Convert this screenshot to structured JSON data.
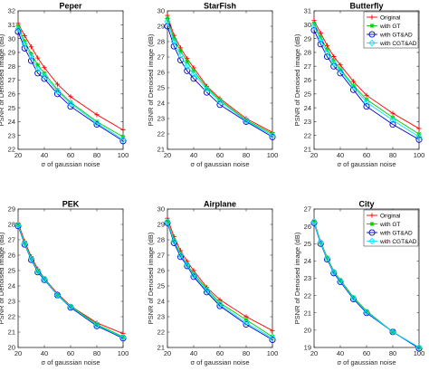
{
  "figure": {
    "x_ticks": [
      20,
      40,
      60,
      80,
      100
    ],
    "xlabel": "σ of gaussian noise",
    "ylabel": "PSNR of Denoised image (dB)",
    "series_styles": [
      {
        "name": "Original",
        "color": "#ff0000",
        "marker": "plus"
      },
      {
        "name": "with GT",
        "color": "#00cc00",
        "marker": "star"
      },
      {
        "name": "with GT&AD",
        "color": "#0000cc",
        "marker": "circle"
      },
      {
        "name": "with CGT&AD",
        "color": "#00e5ff",
        "marker": "diamond"
      }
    ]
  },
  "chart_data": [
    {
      "type": "line",
      "title": "Peper",
      "xlabel": "σ of gaussian noise",
      "ylabel": "PSNR of Denoised image (dB)",
      "xlim": [
        20,
        100
      ],
      "ylim": [
        22,
        32
      ],
      "yticks": [
        22,
        23,
        24,
        25,
        26,
        27,
        28,
        29,
        30,
        31,
        32
      ],
      "x": [
        20,
        25,
        30,
        35,
        40,
        50,
        60,
        80,
        100
      ],
      "legend": false,
      "series": [
        {
          "name": "Original",
          "values": [
            31.1,
            30.2,
            29.4,
            28.6,
            27.9,
            26.7,
            25.8,
            24.5,
            23.4
          ]
        },
        {
          "name": "with GT",
          "values": [
            30.9,
            29.8,
            28.9,
            28.1,
            27.5,
            26.3,
            25.4,
            24.0,
            22.9
          ]
        },
        {
          "name": "with GT&AD",
          "values": [
            30.5,
            29.3,
            28.4,
            27.5,
            27.1,
            26.0,
            25.1,
            23.8,
            22.6
          ]
        },
        {
          "name": "with CGT&AD",
          "values": [
            30.7,
            29.6,
            28.7,
            27.8,
            27.3,
            26.2,
            25.3,
            23.9,
            22.7
          ]
        }
      ]
    },
    {
      "type": "line",
      "title": "StarFish",
      "xlabel": "σ of gaussian noise",
      "ylabel": "PSNR of Denoised image (dB)",
      "xlim": [
        20,
        100
      ],
      "ylim": [
        21,
        30
      ],
      "yticks": [
        21,
        22,
        23,
        24,
        25,
        26,
        27,
        28,
        29,
        30
      ],
      "x": [
        20,
        25,
        30,
        35,
        40,
        50,
        60,
        80,
        100
      ],
      "legend": false,
      "series": [
        {
          "name": "Original",
          "values": [
            29.7,
            28.4,
            27.6,
            26.9,
            26.3,
            25.1,
            24.3,
            23.0,
            22.1
          ]
        },
        {
          "name": "with GT",
          "values": [
            29.5,
            28.2,
            27.4,
            26.7,
            26.1,
            25.0,
            24.2,
            22.9,
            22.0
          ]
        },
        {
          "name": "with GT&AD",
          "values": [
            29.0,
            27.7,
            26.8,
            26.1,
            25.6,
            24.7,
            23.9,
            22.8,
            21.8
          ]
        },
        {
          "name": "with CGT&AD",
          "values": [
            29.3,
            28.0,
            27.1,
            26.4,
            25.9,
            24.9,
            24.1,
            22.85,
            21.9
          ]
        }
      ]
    },
    {
      "type": "line",
      "title": "Butterfly",
      "xlabel": "σ of gaussian noise",
      "ylabel": "PSNR of Denoised image (dB)",
      "xlim": [
        20,
        100
      ],
      "ylim": [
        21,
        31
      ],
      "yticks": [
        21,
        22,
        23,
        24,
        25,
        26,
        27,
        28,
        29,
        30,
        31
      ],
      "x": [
        20,
        25,
        30,
        35,
        40,
        50,
        60,
        80,
        100
      ],
      "legend": true,
      "legend_position": "top-right",
      "series": [
        {
          "name": "Original",
          "values": [
            30.3,
            29.4,
            28.5,
            27.7,
            27.1,
            25.9,
            24.9,
            23.6,
            22.5
          ]
        },
        {
          "name": "with GT",
          "values": [
            30.1,
            29.1,
            28.2,
            27.4,
            26.8,
            25.6,
            24.6,
            23.3,
            22.1
          ]
        },
        {
          "name": "with GT&AD",
          "values": [
            29.6,
            28.6,
            27.7,
            27.0,
            26.5,
            25.3,
            24.1,
            22.8,
            21.7
          ]
        },
        {
          "name": "with CGT&AD",
          "values": [
            29.9,
            28.9,
            28.0,
            27.2,
            26.7,
            25.5,
            24.4,
            23.1,
            21.9
          ]
        }
      ]
    },
    {
      "type": "line",
      "title": "PEK",
      "xlabel": "σ of gaussian noise",
      "ylabel": "PSNR of Denoised image (dB)",
      "xlim": [
        20,
        100
      ],
      "ylim": [
        20,
        29
      ],
      "yticks": [
        20,
        21,
        22,
        23,
        24,
        25,
        26,
        27,
        28,
        29
      ],
      "x": [
        20,
        25,
        30,
        35,
        40,
        50,
        60,
        80,
        100
      ],
      "legend": false,
      "series": [
        {
          "name": "Original",
          "values": [
            28.1,
            26.9,
            25.9,
            25.1,
            24.5,
            23.5,
            22.7,
            21.6,
            20.9
          ]
        },
        {
          "name": "with GT",
          "values": [
            28.0,
            26.8,
            25.8,
            25.0,
            24.5,
            23.4,
            22.7,
            21.5,
            20.7
          ]
        },
        {
          "name": "with GT&AD",
          "values": [
            27.9,
            26.7,
            25.7,
            24.9,
            24.4,
            23.4,
            22.6,
            21.4,
            20.6
          ]
        },
        {
          "name": "with CGT&AD",
          "values": [
            27.95,
            26.75,
            25.75,
            24.95,
            24.45,
            23.4,
            22.65,
            21.45,
            20.65
          ]
        }
      ]
    },
    {
      "type": "line",
      "title": "Airplane",
      "xlabel": "σ of gaussian noise",
      "ylabel": "PSNR of Denoised image (dB)",
      "xlim": [
        20,
        100
      ],
      "ylim": [
        21,
        30
      ],
      "yticks": [
        21,
        22,
        23,
        24,
        25,
        26,
        27,
        28,
        29,
        30
      ],
      "x": [
        20,
        25,
        30,
        35,
        40,
        50,
        60,
        80,
        100
      ],
      "legend": false,
      "series": [
        {
          "name": "Original",
          "values": [
            29.4,
            28.2,
            27.3,
            26.6,
            26.0,
            24.9,
            24.1,
            23.0,
            22.1
          ]
        },
        {
          "name": "with GT",
          "values": [
            29.2,
            28.0,
            27.1,
            26.4,
            25.8,
            24.8,
            23.9,
            22.8,
            21.7
          ]
        },
        {
          "name": "with GT&AD",
          "values": [
            29.1,
            27.8,
            26.9,
            26.3,
            25.6,
            24.6,
            23.7,
            22.5,
            21.5
          ]
        },
        {
          "name": "with CGT&AD",
          "values": [
            29.15,
            27.9,
            27.0,
            26.35,
            25.7,
            24.7,
            23.8,
            22.6,
            21.6
          ]
        }
      ]
    },
    {
      "type": "line",
      "title": "City",
      "xlabel": "σ of gaussian noise",
      "ylabel": "PSNR of Denoised image (dB)",
      "xlim": [
        20,
        100
      ],
      "ylim": [
        19,
        27
      ],
      "yticks": [
        19,
        20,
        21,
        22,
        23,
        24,
        25,
        26,
        27
      ],
      "x": [
        20,
        25,
        30,
        35,
        40,
        50,
        60,
        80,
        100
      ],
      "legend": true,
      "legend_position": "top-right",
      "series": [
        {
          "name": "Original",
          "values": [
            26.3,
            25.1,
            24.2,
            23.4,
            22.9,
            21.9,
            21.1,
            19.9,
            19.0
          ]
        },
        {
          "name": "with GT",
          "values": [
            26.3,
            25.1,
            24.2,
            23.4,
            22.9,
            21.9,
            21.1,
            19.9,
            19.0
          ]
        },
        {
          "name": "with GT&AD",
          "values": [
            26.2,
            25.0,
            24.1,
            23.3,
            22.8,
            21.8,
            21.0,
            19.9,
            18.95
          ]
        },
        {
          "name": "with CGT&AD",
          "values": [
            26.25,
            25.05,
            24.15,
            23.35,
            22.85,
            21.85,
            21.05,
            19.9,
            19.0
          ]
        }
      ]
    }
  ]
}
